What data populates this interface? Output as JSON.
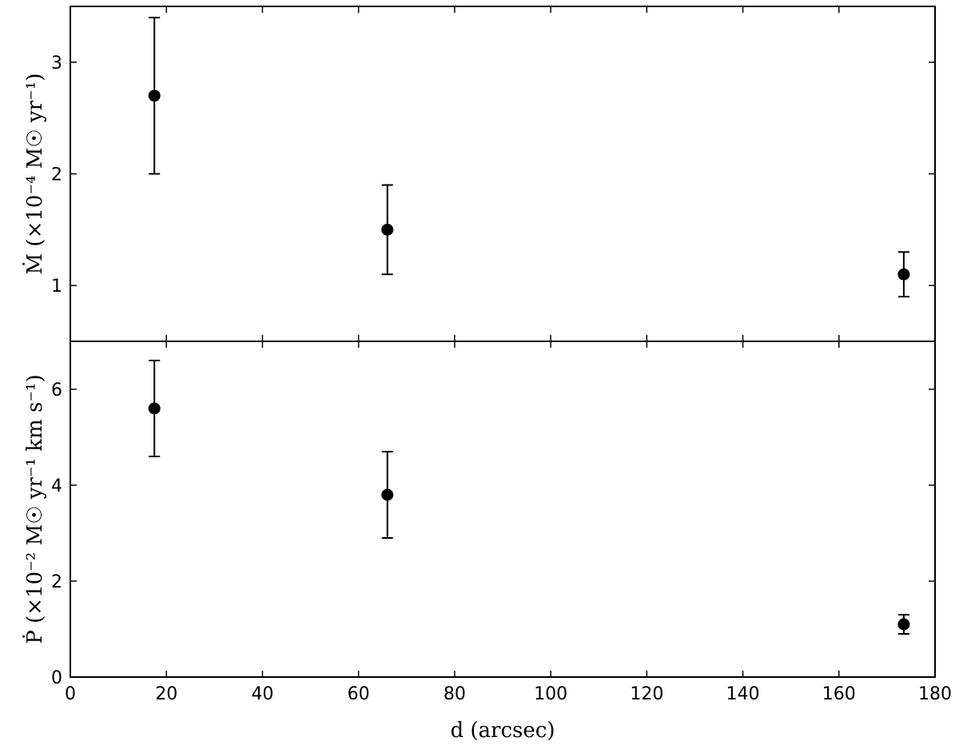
{
  "chart_data": [
    {
      "type": "errorbar",
      "ylabel": "Ṁ (×10⁻⁴ M☉ yr⁻¹)",
      "x": [
        17.5,
        66,
        173.5
      ],
      "values": [
        2.7,
        1.5,
        1.1
      ],
      "errors": [
        0.7,
        0.4,
        0.2
      ],
      "color": "#000000",
      "xlim": [
        0,
        180
      ],
      "ylim": [
        0.5,
        3.5
      ],
      "yticks": [
        1,
        2,
        3
      ]
    },
    {
      "type": "errorbar",
      "ylabel": "Ṗ (×10⁻² M☉ yr⁻¹ km s⁻¹)",
      "xlabel": "d (arcsec)",
      "x": [
        17.5,
        66,
        173.5
      ],
      "values": [
        5.6,
        3.8,
        1.1
      ],
      "errors": [
        1.0,
        0.9,
        0.2
      ],
      "color": "#000000",
      "xlim": [
        0,
        180
      ],
      "xticks": [
        0,
        20,
        40,
        60,
        80,
        100,
        120,
        140,
        160,
        180
      ],
      "ylim": [
        0,
        7
      ],
      "yticks": [
        0,
        2,
        4,
        6
      ]
    }
  ]
}
